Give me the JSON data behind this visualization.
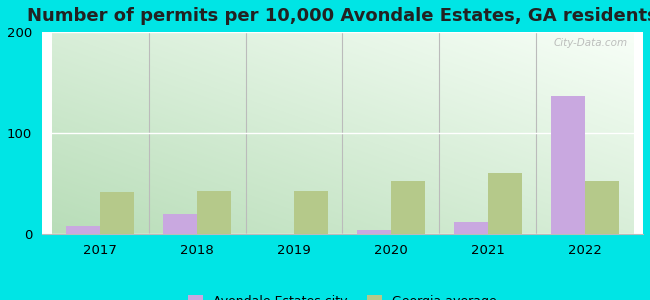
{
  "title": "Number of permits per 10,000 Avondale Estates, GA residents",
  "years": [
    2017,
    2018,
    2019,
    2020,
    2021,
    2022
  ],
  "city_values": [
    8,
    20,
    0,
    4,
    12,
    137
  ],
  "ga_values": [
    42,
    43,
    43,
    52,
    60,
    52
  ],
  "city_color": "#c9a8e0",
  "ga_color": "#b5c98a",
  "background_color": "#00e5e5",
  "grad_bottom_left": "#b8ddb8",
  "grad_top_right": "#f8fff8",
  "ylim": [
    0,
    200
  ],
  "yticks": [
    0,
    100,
    200
  ],
  "bar_width": 0.35,
  "title_fontsize": 13,
  "legend_labels": [
    "Avondale Estates city",
    "Georgia average"
  ],
  "watermark": "City-Data.com"
}
